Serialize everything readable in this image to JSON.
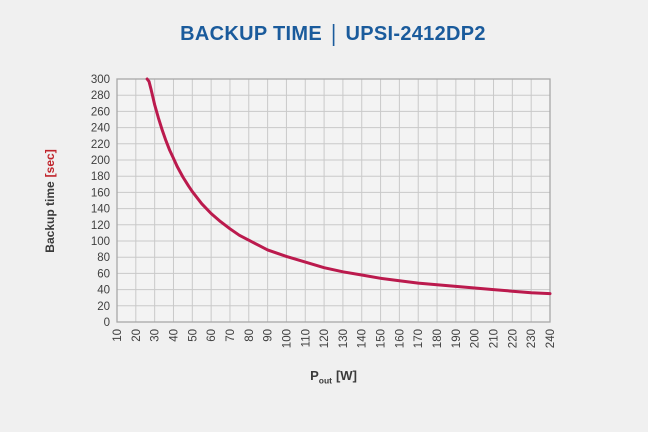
{
  "page": {
    "background": "#f0f0f0"
  },
  "header": {
    "title_left": "BACKUP TIME",
    "separator": "|",
    "title_right": "UPSI-2412DP2",
    "color": "#1a5b9c"
  },
  "axes": {
    "y_title_text": "Backup time",
    "y_title_unit": "[sec]",
    "x_title_symbol": "P",
    "x_title_subscript": "out",
    "x_title_unit": "[W]"
  },
  "style": {
    "grid_color": "#c9c9c9",
    "frame_color": "#a8a8a8",
    "plot_bg": "#f3f3f3",
    "tick_color": "#404040",
    "unit_red": "#c0252c",
    "curve_color": "#bb1a4d",
    "curve_width": 3
  },
  "chart_data": {
    "type": "line",
    "title": "BACKUP TIME | UPSI-2412DP2",
    "xlabel": "Pout [W]",
    "ylabel": "Backup time [sec]",
    "xlim": [
      10,
      240
    ],
    "ylim": [
      0,
      300
    ],
    "x_tick_step": 10,
    "y_tick_step": 20,
    "x_ticks": [
      10,
      20,
      30,
      40,
      50,
      60,
      70,
      80,
      90,
      100,
      110,
      120,
      130,
      140,
      150,
      160,
      170,
      180,
      190,
      200,
      210,
      220,
      230,
      240
    ],
    "y_ticks": [
      0,
      20,
      40,
      60,
      80,
      100,
      120,
      140,
      160,
      180,
      200,
      220,
      240,
      260,
      280,
      300
    ],
    "grid": true,
    "legend": false,
    "series": [
      {
        "name": "backup-time-curve",
        "color": "#bb1a4d",
        "points": [
          [
            26,
            300
          ],
          [
            27,
            297
          ],
          [
            28,
            288
          ],
          [
            30,
            268
          ],
          [
            32,
            252
          ],
          [
            34,
            237
          ],
          [
            36,
            224
          ],
          [
            38,
            212
          ],
          [
            40,
            202
          ],
          [
            42,
            192
          ],
          [
            45,
            179
          ],
          [
            48,
            168
          ],
          [
            50,
            161
          ],
          [
            55,
            146
          ],
          [
            60,
            134
          ],
          [
            65,
            124
          ],
          [
            70,
            115
          ],
          [
            75,
            107
          ],
          [
            80,
            101
          ],
          [
            85,
            95
          ],
          [
            90,
            89
          ],
          [
            95,
            85
          ],
          [
            100,
            81
          ],
          [
            110,
            74
          ],
          [
            120,
            67
          ],
          [
            130,
            62
          ],
          [
            140,
            58
          ],
          [
            150,
            54
          ],
          [
            160,
            51
          ],
          [
            170,
            48
          ],
          [
            180,
            46
          ],
          [
            190,
            44
          ],
          [
            200,
            42
          ],
          [
            210,
            40
          ],
          [
            220,
            38
          ],
          [
            230,
            36
          ],
          [
            240,
            35
          ]
        ]
      }
    ]
  }
}
